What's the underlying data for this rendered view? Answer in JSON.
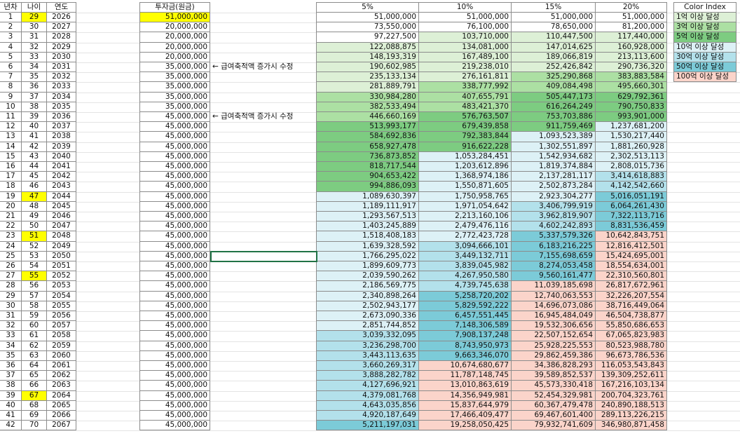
{
  "table": {
    "headers": [
      "년차",
      "나이",
      "연도",
      "투자금(원금)",
      null,
      "5%",
      "10%",
      "15%",
      "20%"
    ],
    "rows": [
      [
        1,
        29,
        2026,
        "51,000,000",
        null,
        "51,000,000",
        "51,000,000",
        "51,000,000",
        "51,000,000"
      ],
      [
        2,
        30,
        2027,
        "20,000,000",
        null,
        "73,550,000",
        "76,100,000",
        "78,650,000",
        "81,200,000"
      ],
      [
        3,
        31,
        2028,
        "20,000,000",
        null,
        "97,227,500",
        "103,710,000",
        "110,447,500",
        "117,440,000"
      ],
      [
        4,
        32,
        2029,
        "20,000,000",
        null,
        "122,088,875",
        "134,081,000",
        "147,014,625",
        "160,928,000"
      ],
      [
        5,
        33,
        2030,
        "20,000,000",
        null,
        "148,193,319",
        "167,489,100",
        "189,066,819",
        "213,113,600"
      ],
      [
        6,
        34,
        2031,
        "35,000,000",
        "← 급여축적액 증가시 수정",
        "190,602,985",
        "219,238,010",
        "252,426,842",
        "290,736,320"
      ],
      [
        7,
        35,
        2032,
        "35,000,000",
        null,
        "235,133,134",
        "276,161,811",
        "325,290,868",
        "383,883,584"
      ],
      [
        8,
        36,
        2033,
        "35,000,000",
        null,
        "281,889,791",
        "338,777,992",
        "409,084,498",
        "495,660,301"
      ],
      [
        9,
        37,
        2034,
        "35,000,000",
        null,
        "330,984,280",
        "407,655,791",
        "505,447,173",
        "629,792,361"
      ],
      [
        10,
        38,
        2035,
        "35,000,000",
        null,
        "382,533,494",
        "483,421,370",
        "616,264,249",
        "790,750,833"
      ],
      [
        11,
        39,
        2036,
        "45,000,000",
        "← 급여축적액 증가시 수정",
        "446,660,169",
        "576,763,507",
        "753,703,886",
        "993,901,000"
      ],
      [
        12,
        40,
        2037,
        "45,000,000",
        null,
        "513,993,177",
        "679,439,858",
        "911,759,469",
        "1,237,681,200"
      ],
      [
        13,
        41,
        2038,
        "45,000,000",
        null,
        "584,692,836",
        "792,383,844",
        "1,093,523,389",
        "1,530,217,440"
      ],
      [
        14,
        42,
        2039,
        "45,000,000",
        null,
        "658,927,478",
        "916,622,228",
        "1,302,551,897",
        "1,881,260,928"
      ],
      [
        15,
        43,
        2040,
        "45,000,000",
        null,
        "736,873,852",
        "1,053,284,451",
        "1,542,934,682",
        "2,302,513,113"
      ],
      [
        16,
        44,
        2041,
        "45,000,000",
        null,
        "818,717,544",
        "1,203,612,896",
        "1,819,374,884",
        "2,808,015,736"
      ],
      [
        17,
        45,
        2042,
        "45,000,000",
        null,
        "904,653,422",
        "1,368,974,186",
        "2,137,281,117",
        "3,414,618,883"
      ],
      [
        18,
        46,
        2043,
        "45,000,000",
        null,
        "994,886,093",
        "1,550,871,605",
        "2,502,873,284",
        "4,142,542,660"
      ],
      [
        19,
        47,
        2044,
        "45,000,000",
        null,
        "1,089,630,397",
        "1,750,958,765",
        "2,923,304,277",
        "5,016,051,191"
      ],
      [
        20,
        48,
        2045,
        "45,000,000",
        null,
        "1,189,111,917",
        "1,971,054,642",
        "3,406,799,919",
        "6,064,261,430"
      ],
      [
        21,
        49,
        2046,
        "45,000,000",
        null,
        "1,293,567,513",
        "2,213,160,106",
        "3,962,819,907",
        "7,322,113,716"
      ],
      [
        22,
        50,
        2047,
        "45,000,000",
        null,
        "1,403,245,889",
        "2,479,476,116",
        "4,602,242,893",
        "8,831,536,459"
      ],
      [
        23,
        51,
        2048,
        "45,000,000",
        null,
        "1,518,408,183",
        "2,772,423,728",
        "5,337,579,326",
        "10,642,843,751"
      ],
      [
        24,
        52,
        2049,
        "45,000,000",
        null,
        "1,639,328,592",
        "3,094,666,101",
        "6,183,216,225",
        "12,816,412,501"
      ],
      [
        25,
        53,
        2050,
        "45,000,000",
        null,
        "1,766,295,022",
        "3,449,132,711",
        "7,155,698,659",
        "15,424,695,001"
      ],
      [
        26,
        54,
        2051,
        "45,000,000",
        null,
        "1,899,609,773",
        "3,839,045,982",
        "8,274,053,458",
        "18,554,634,001"
      ],
      [
        27,
        55,
        2052,
        "45,000,000",
        null,
        "2,039,590,262",
        "4,267,950,580",
        "9,560,161,477",
        "22,310,560,801"
      ],
      [
        28,
        56,
        2053,
        "45,000,000",
        null,
        "2,186,569,775",
        "4,739,745,638",
        "11,039,185,698",
        "26,817,672,961"
      ],
      [
        29,
        57,
        2054,
        "45,000,000",
        null,
        "2,340,898,264",
        "5,258,720,202",
        "12,740,063,553",
        "32,226,207,554"
      ],
      [
        30,
        58,
        2055,
        "45,000,000",
        null,
        "2,502,943,177",
        "5,829,592,222",
        "14,696,073,086",
        "38,716,449,064"
      ],
      [
        31,
        59,
        2056,
        "45,000,000",
        null,
        "2,673,090,336",
        "6,457,551,445",
        "16,945,484,049",
        "46,504,738,877"
      ],
      [
        32,
        60,
        2057,
        "45,000,000",
        null,
        "2,851,744,852",
        "7,148,306,589",
        "19,532,306,656",
        "55,850,686,653"
      ],
      [
        33,
        61,
        2058,
        "45,000,000",
        null,
        "3,039,332,095",
        "7,908,137,248",
        "22,507,152,654",
        "67,065,823,983"
      ],
      [
        34,
        62,
        2059,
        "45,000,000",
        null,
        "3,236,298,700",
        "8,743,950,973",
        "25,928,225,553",
        "80,523,988,780"
      ],
      [
        35,
        63,
        2060,
        "45,000,000",
        null,
        "3,443,113,635",
        "9,663,346,070",
        "29,862,459,386",
        "96,673,786,536"
      ],
      [
        36,
        64,
        2061,
        "45,000,000",
        null,
        "3,660,269,317",
        "10,674,680,677",
        "34,386,828,293",
        "116,053,543,843"
      ],
      [
        37,
        65,
        2062,
        "45,000,000",
        null,
        "3,888,282,782",
        "11,787,148,745",
        "39,589,852,537",
        "139,309,252,611"
      ],
      [
        38,
        66,
        2063,
        "45,000,000",
        null,
        "4,127,696,921",
        "13,010,863,619",
        "45,573,330,418",
        "167,216,103,134"
      ],
      [
        39,
        67,
        2064,
        "45,000,000",
        null,
        "4,379,081,768",
        "14,356,949,981",
        "52,454,329,981",
        "200,704,323,761"
      ],
      [
        40,
        68,
        2065,
        "45,000,000",
        null,
        "4,643,035,856",
        "15,837,644,979",
        "60,367,479,478",
        "240,890,188,513"
      ],
      [
        41,
        69,
        2066,
        "45,000,000",
        null,
        "4,920,187,649",
        "17,466,409,477",
        "69,467,601,400",
        "289,113,226,215"
      ],
      [
        42,
        70,
        2067,
        "45,000,000",
        null,
        "5,211,197,031",
        "19,258,050,425",
        "79,932,741,609",
        "346,980,871,458"
      ]
    ],
    "highlight": {
      "color": "#ffff00",
      "cells": [
        [
          0,
          1
        ],
        [
          0,
          3
        ],
        [
          18,
          1
        ],
        [
          22,
          1
        ],
        [
          26,
          1
        ],
        [
          38,
          1
        ]
      ]
    }
  },
  "color_index": {
    "title": "Color Index",
    "entries": [
      {
        "label": "1억 이상 달성",
        "min": 100000000,
        "color": "#ddf0d6"
      },
      {
        "label": "3억 이상 달성",
        "min": 300000000,
        "color": "#ace0a3"
      },
      {
        "label": "5억 이상 달성",
        "min": 500000000,
        "color": "#7dcc81"
      },
      {
        "label": "10억 이상 달성",
        "min": 1000000000,
        "color": "#ddf1f6"
      },
      {
        "label": "30억 이상 달성",
        "min": 3000000000,
        "color": "#b3e1eb"
      },
      {
        "label": "50억 이상 달성",
        "min": 5000000000,
        "color": "#7ccbd8"
      },
      {
        "label": "100억 이상 달성",
        "min": 10000000000,
        "color": "#fbd4ca"
      }
    ]
  }
}
